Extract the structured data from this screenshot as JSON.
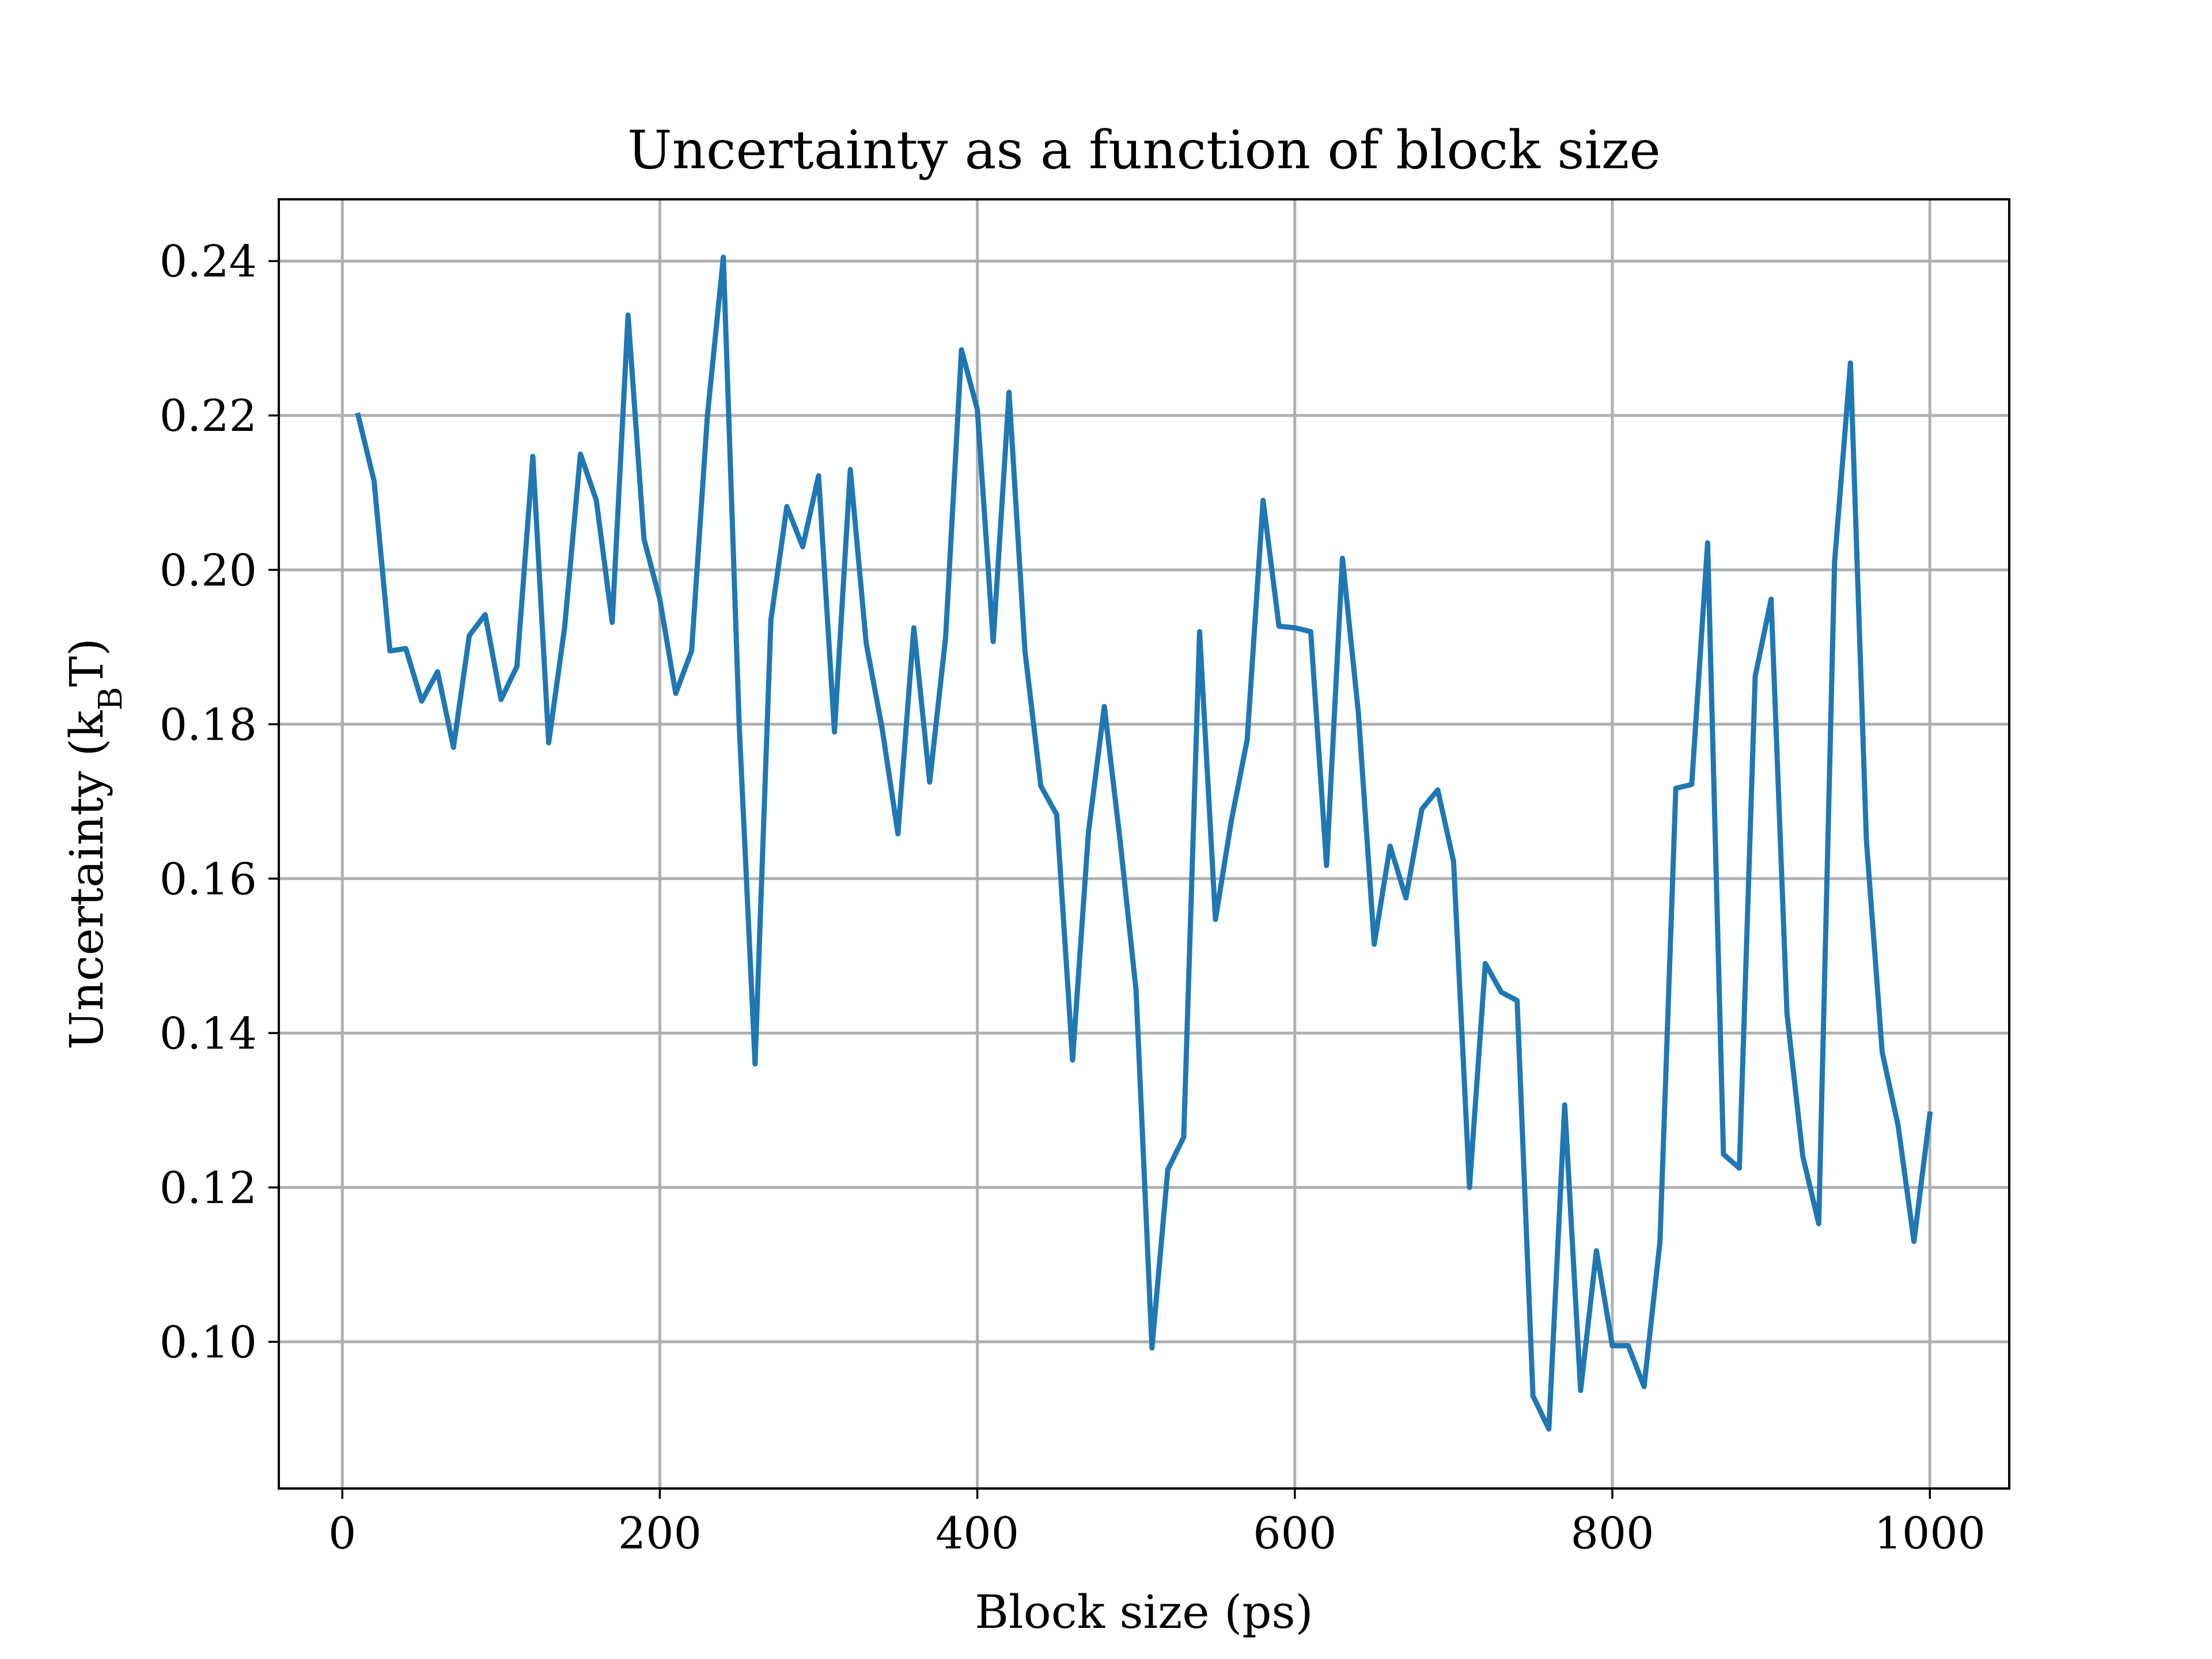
{
  "chart_data": {
    "type": "line",
    "title": "Uncertainty as a function of block size",
    "xlabel": "Block size (ps)",
    "ylabel": {
      "prefix": "Uncertainty (k",
      "subscript": "B",
      "suffix": "T)"
    },
    "xlim": [
      -40,
      1050
    ],
    "ylim": [
      0.081,
      0.248
    ],
    "xticks": [
      0,
      200,
      400,
      600,
      800,
      1000
    ],
    "xtick_labels": [
      "0",
      "200",
      "400",
      "600",
      "800",
      "1000"
    ],
    "yticks": [
      0.1,
      0.12,
      0.14,
      0.16,
      0.18,
      0.2,
      0.22,
      0.24
    ],
    "ytick_labels": [
      "0.10",
      "0.12",
      "0.14",
      "0.16",
      "0.18",
      "0.20",
      "0.22",
      "0.24"
    ],
    "grid": true,
    "legend": "none",
    "series": [
      {
        "color": "#1f77b4",
        "x": [
          10,
          20,
          30,
          40,
          50,
          60,
          70,
          80,
          90,
          100,
          110,
          120,
          130,
          140,
          150,
          160,
          170,
          180,
          190,
          200,
          210,
          220,
          230,
          240,
          250,
          260,
          270,
          280,
          290,
          300,
          310,
          320,
          330,
          340,
          350,
          360,
          370,
          380,
          390,
          400,
          410,
          420,
          430,
          440,
          450,
          460,
          470,
          480,
          490,
          500,
          510,
          520,
          530,
          540,
          550,
          560,
          570,
          580,
          590,
          600,
          610,
          620,
          630,
          640,
          650,
          660,
          670,
          680,
          690,
          700,
          710,
          720,
          730,
          740,
          750,
          760,
          770,
          780,
          790,
          800,
          810,
          820,
          830,
          840,
          850,
          860,
          870,
          880,
          890,
          900,
          910,
          920,
          930,
          940,
          950,
          960,
          970,
          980,
          990,
          1000
        ],
        "y": [
          0.22,
          0.2115,
          0.1895,
          0.1898,
          0.183,
          0.1868,
          0.177,
          0.1915,
          0.1942,
          0.1832,
          0.1875,
          0.2147,
          0.1776,
          0.1925,
          0.215,
          0.209,
          0.1932,
          0.233,
          0.204,
          0.1962,
          0.184,
          0.1895,
          0.22,
          0.2405,
          0.18,
          0.136,
          0.1935,
          0.2082,
          0.203,
          0.2122,
          0.179,
          0.213,
          0.1905,
          0.1795,
          0.1658,
          0.1925,
          0.1725,
          0.1912,
          0.2285,
          0.2208,
          0.1907,
          0.223,
          0.1895,
          0.172,
          0.1683,
          0.1365,
          0.166,
          0.1823,
          0.1648,
          0.1455,
          0.0992,
          0.1223,
          0.1265,
          0.192,
          0.1547,
          0.1675,
          0.178,
          0.209,
          0.1927,
          0.1925,
          0.192,
          0.1617,
          0.2015,
          0.1815,
          0.1515,
          0.1642,
          0.1575,
          0.169,
          0.1715,
          0.1622,
          0.12,
          0.149,
          0.1453,
          0.1442,
          0.093,
          0.0887,
          0.1307,
          0.0937,
          0.1118,
          0.0995,
          0.0995,
          0.0942,
          0.113,
          0.1717,
          0.1722,
          0.2035,
          0.1243,
          0.1225,
          0.1862,
          0.1962,
          0.1425,
          0.124,
          0.1153,
          0.201,
          0.2268,
          0.165,
          0.1375,
          0.128,
          0.113,
          0.1295
        ]
      }
    ]
  }
}
